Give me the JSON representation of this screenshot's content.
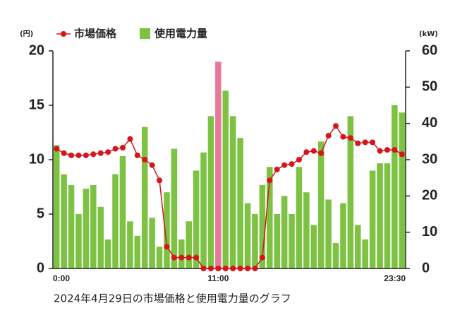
{
  "chart_data": {
    "type": "bar_line",
    "title": "2024年4月29日の市場価格と使用電力量のグラフ",
    "y_label": "(円)",
    "y2_label": "(kW)",
    "categories": [
      "0:00",
      null,
      null,
      null,
      null,
      null,
      null,
      null,
      null,
      null,
      null,
      null,
      null,
      null,
      null,
      null,
      null,
      null,
      null,
      null,
      null,
      null,
      "11:00",
      null,
      null,
      null,
      null,
      null,
      null,
      null,
      null,
      null,
      null,
      null,
      null,
      null,
      null,
      null,
      null,
      null,
      null,
      null,
      null,
      null,
      null,
      null,
      null,
      "23:30"
    ],
    "ylim": [
      0,
      20
    ],
    "yticks": [
      0,
      5,
      10,
      15,
      20
    ],
    "y2lim": [
      0,
      60
    ],
    "y2ticks": [
      0,
      10,
      20,
      30,
      40,
      50,
      60
    ],
    "grid": false,
    "series": [
      {
        "name": "市場価格",
        "type": "line",
        "color": "#d7141a",
        "values": [
          11.0,
          10.6,
          10.4,
          10.4,
          10.4,
          10.5,
          10.6,
          10.7,
          11.0,
          11.1,
          11.9,
          10.4,
          10.0,
          9.5,
          8.1,
          2.0,
          1.0,
          1.0,
          1.0,
          1.0,
          0,
          0,
          0,
          0,
          0,
          0,
          0,
          0,
          1.0,
          8.1,
          9.1,
          9.5,
          9.6,
          10.0,
          10.7,
          10.8,
          10.6,
          12.2,
          13.1,
          12.1,
          12.0,
          11.5,
          11.6,
          11.6,
          10.8,
          10.9,
          10.9,
          10.5
        ]
      },
      {
        "name": "使用電力量",
        "type": "bar",
        "axis": "y2",
        "color": "#7dc242",
        "values": [
          34,
          26,
          23,
          15,
          22,
          23,
          17,
          8,
          26,
          31,
          13,
          9,
          39,
          14,
          6,
          21,
          33,
          8,
          13,
          27,
          32,
          42,
          57,
          49,
          42,
          36,
          18,
          15,
          23,
          28,
          15,
          20,
          15,
          28,
          21,
          12,
          35,
          19,
          7,
          18,
          42,
          12,
          8,
          27,
          29,
          29,
          45,
          43
        ],
        "colors": [
          "#7dc242",
          "#7dc242",
          "#7dc242",
          "#7dc242",
          "#7dc242",
          "#7dc242",
          "#7dc242",
          "#7dc242",
          "#7dc242",
          "#7dc242",
          "#7dc242",
          "#7dc242",
          "#7dc242",
          "#7dc242",
          "#7dc242",
          "#7dc242",
          "#7dc242",
          "#7dc242",
          "#7dc242",
          "#7dc242",
          "#7dc242",
          "#7dc242",
          "#e8789a",
          "#7dc242",
          "#7dc242",
          "#7dc242",
          "#7dc242",
          "#7dc242",
          "#7dc242",
          "#7dc242",
          "#7dc242",
          "#7dc242",
          "#7dc242",
          "#7dc242",
          "#7dc242",
          "#7dc242",
          "#7dc242",
          "#7dc242",
          "#7dc242",
          "#7dc242",
          "#7dc242",
          "#7dc242",
          "#7dc242",
          "#7dc242",
          "#7dc242",
          "#7dc242",
          "#7dc242",
          "#7dc242"
        ]
      }
    ]
  }
}
